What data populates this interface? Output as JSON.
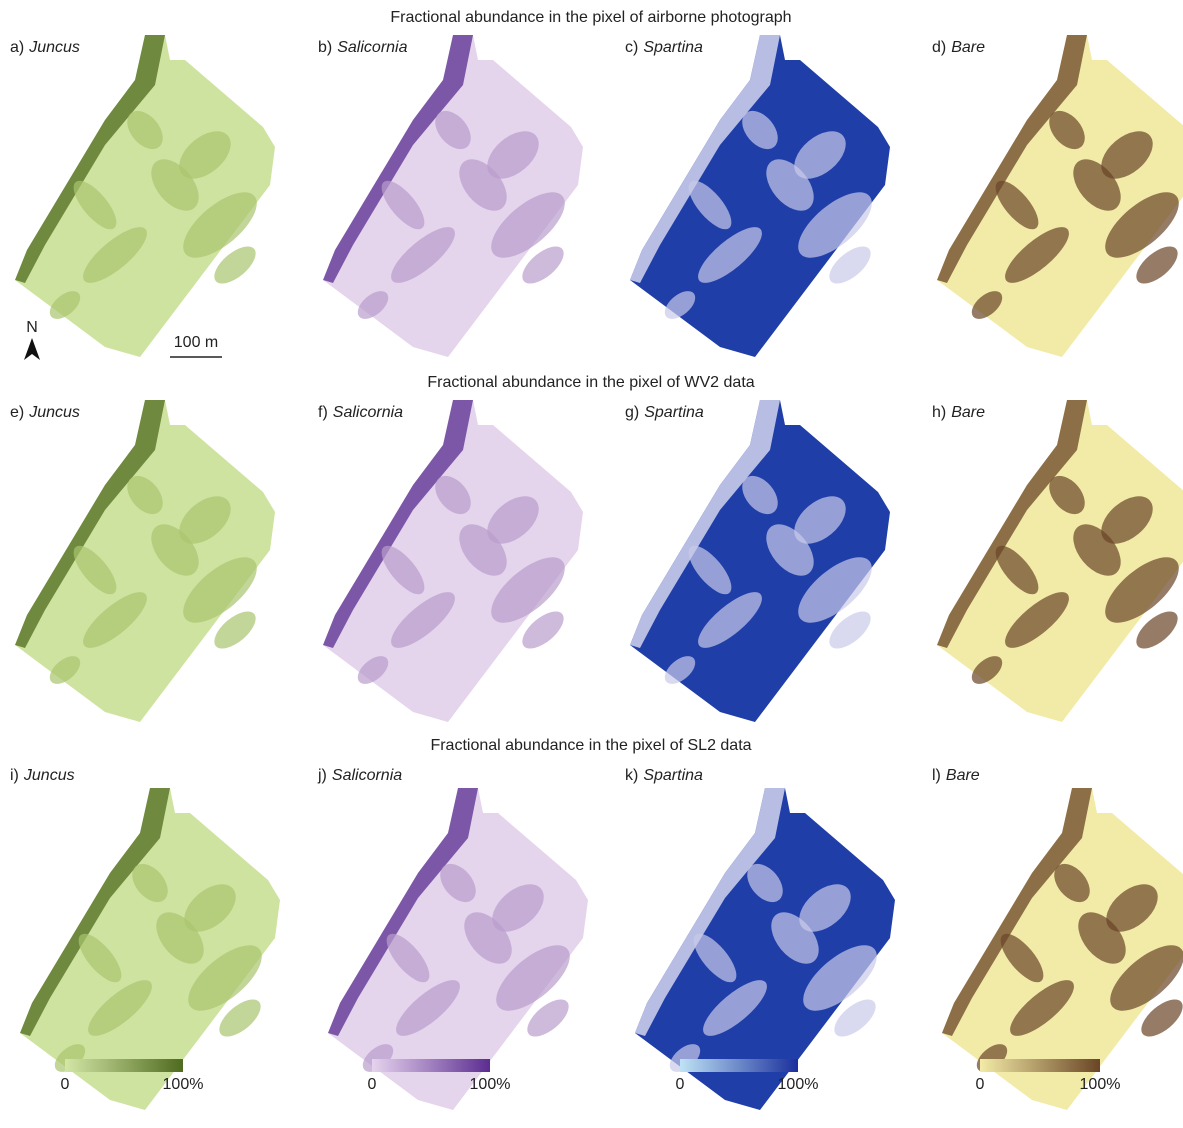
{
  "rows": [
    {
      "title": "Fractional abundance in the pixel of airborne photograph",
      "panels": [
        {
          "letter": "a)",
          "name": "Juncus"
        },
        {
          "letter": "b)",
          "name": "Salicornia"
        },
        {
          "letter": "c)",
          "name": "Spartina"
        },
        {
          "letter": "d)",
          "name": "Bare"
        }
      ]
    },
    {
      "title": "Fractional abundance in the pixel of WV2 data",
      "panels": [
        {
          "letter": "e)",
          "name": "Juncus"
        },
        {
          "letter": "f)",
          "name": "Salicornia"
        },
        {
          "letter": "g)",
          "name": "Spartina"
        },
        {
          "letter": "h)",
          "name": "Bare"
        }
      ]
    },
    {
      "title": "Fractional abundance in the pixel of SL2 data",
      "panels": [
        {
          "letter": "i)",
          "name": "Juncus"
        },
        {
          "letter": "j)",
          "name": "Salicornia"
        },
        {
          "letter": "k)",
          "name": "Spartina"
        },
        {
          "letter": "l)",
          "name": "Bare"
        }
      ]
    }
  ],
  "north": "N",
  "scale_bar": "100 m",
  "colorbars": [
    {
      "min": "0",
      "max": "100%"
    },
    {
      "min": "0",
      "max": "100%"
    },
    {
      "min": "0",
      "max": "100%"
    },
    {
      "min": "0",
      "max": "100%"
    }
  ]
}
